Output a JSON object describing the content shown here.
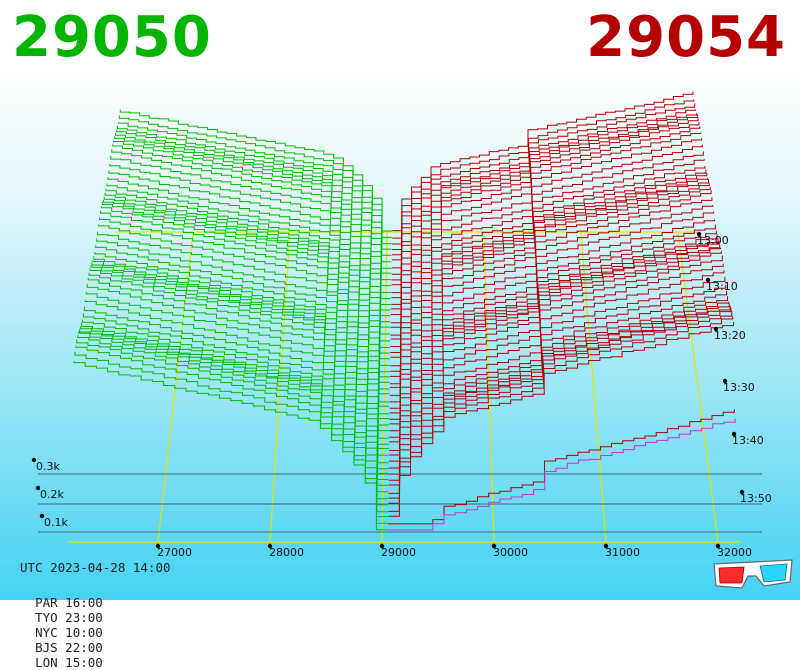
{
  "bid": {
    "value": "29050",
    "color": "#00b400"
  },
  "ask": {
    "value": "29054",
    "color": "#b40000"
  },
  "footer": {
    "utc": "UTC 2023-04-28 14:00",
    "timezones": [
      {
        "label": "PAR 16:00"
      },
      {
        "label": "TYO 23:00"
      },
      {
        "label": "NYC 10:00"
      },
      {
        "label": "BJS 22:00"
      },
      {
        "label": "LON 15:00"
      }
    ]
  },
  "chart_data": {
    "type": "area",
    "price_axis": {
      "ticks": [
        "27000",
        "28000",
        "29000",
        "30000",
        "31000",
        "32000"
      ],
      "values": [
        27000,
        28000,
        29000,
        30000,
        31000,
        32000
      ]
    },
    "volume_axis": {
      "ticks": [
        "0.1k",
        "0.2k",
        "0.3k"
      ],
      "values": [
        100,
        200,
        300
      ]
    },
    "time_axis": {
      "ticks": [
        "13:00",
        "13:10",
        "13:20",
        "13:30",
        "13:40",
        "13:50"
      ]
    },
    "series": [
      {
        "side": "bid",
        "color": "#00bb00",
        "price_range": [
          26200,
          29050
        ],
        "cumulative_depth_range": [
          0,
          350
        ]
      },
      {
        "side": "ask",
        "color": "#b00000",
        "price_range": [
          29054,
          32200
        ],
        "cumulative_depth_range": [
          0,
          420
        ]
      }
    ],
    "grid": true
  },
  "icons": {
    "glasses": "3d-glasses-icon"
  }
}
